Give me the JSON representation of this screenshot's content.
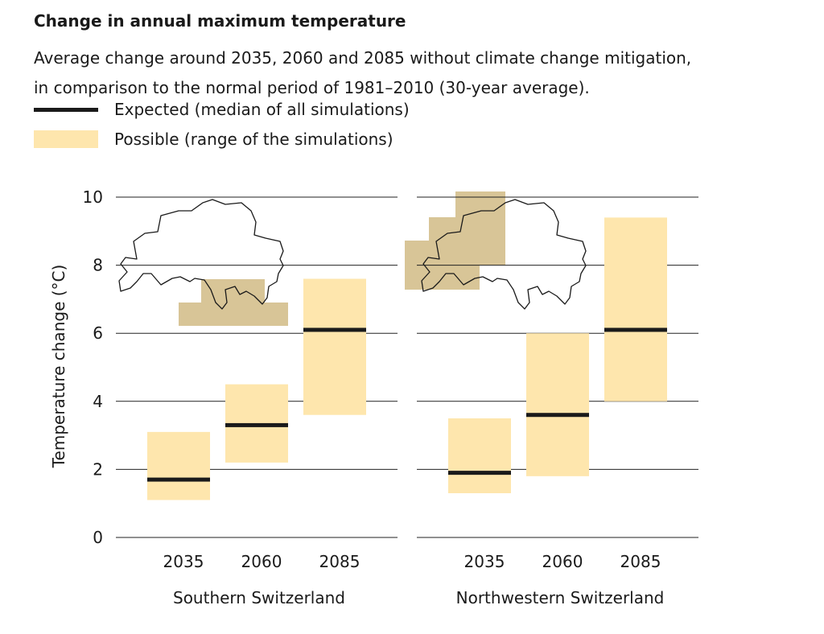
{
  "title": "Change in annual maximum temperature",
  "subtitle_line1": "Average change around 2035, 2060 and 2085 without climate change mitigation,",
  "subtitle_line2": "in comparison to the normal period of 1981–2010 (30-year average).",
  "legend": {
    "expected": "Expected (median of all simulations)",
    "possible": "Possible (range of the simulations)"
  },
  "colors": {
    "range_fill": "#fee6ad",
    "median_line": "#1a1a1a",
    "region_highlight": "#d8c597",
    "grid": "#222222"
  },
  "chart_data": {
    "type": "bar",
    "title": "Change in annual maximum temperature",
    "ylabel": "Temperature change (°C)",
    "ylim": [
      0,
      10
    ],
    "yticks": [
      0,
      2,
      4,
      6,
      8,
      10
    ],
    "categories": [
      "2035",
      "2060",
      "2085"
    ],
    "panels": [
      {
        "name": "Southern Switzerland",
        "series": [
          {
            "period": "2035",
            "low": 1.1,
            "high": 3.1,
            "median": 1.7
          },
          {
            "period": "2060",
            "low": 2.2,
            "high": 4.5,
            "median": 3.3
          },
          {
            "period": "2085",
            "low": 3.6,
            "high": 7.6,
            "median": 6.1
          }
        ]
      },
      {
        "name": "Northwestern Switzerland",
        "series": [
          {
            "period": "2035",
            "low": 1.3,
            "high": 3.5,
            "median": 1.9
          },
          {
            "period": "2060",
            "low": 1.8,
            "high": 6.0,
            "median": 3.6
          },
          {
            "period": "2085",
            "low": 4.0,
            "high": 9.4,
            "median": 6.1
          }
        ]
      }
    ]
  }
}
